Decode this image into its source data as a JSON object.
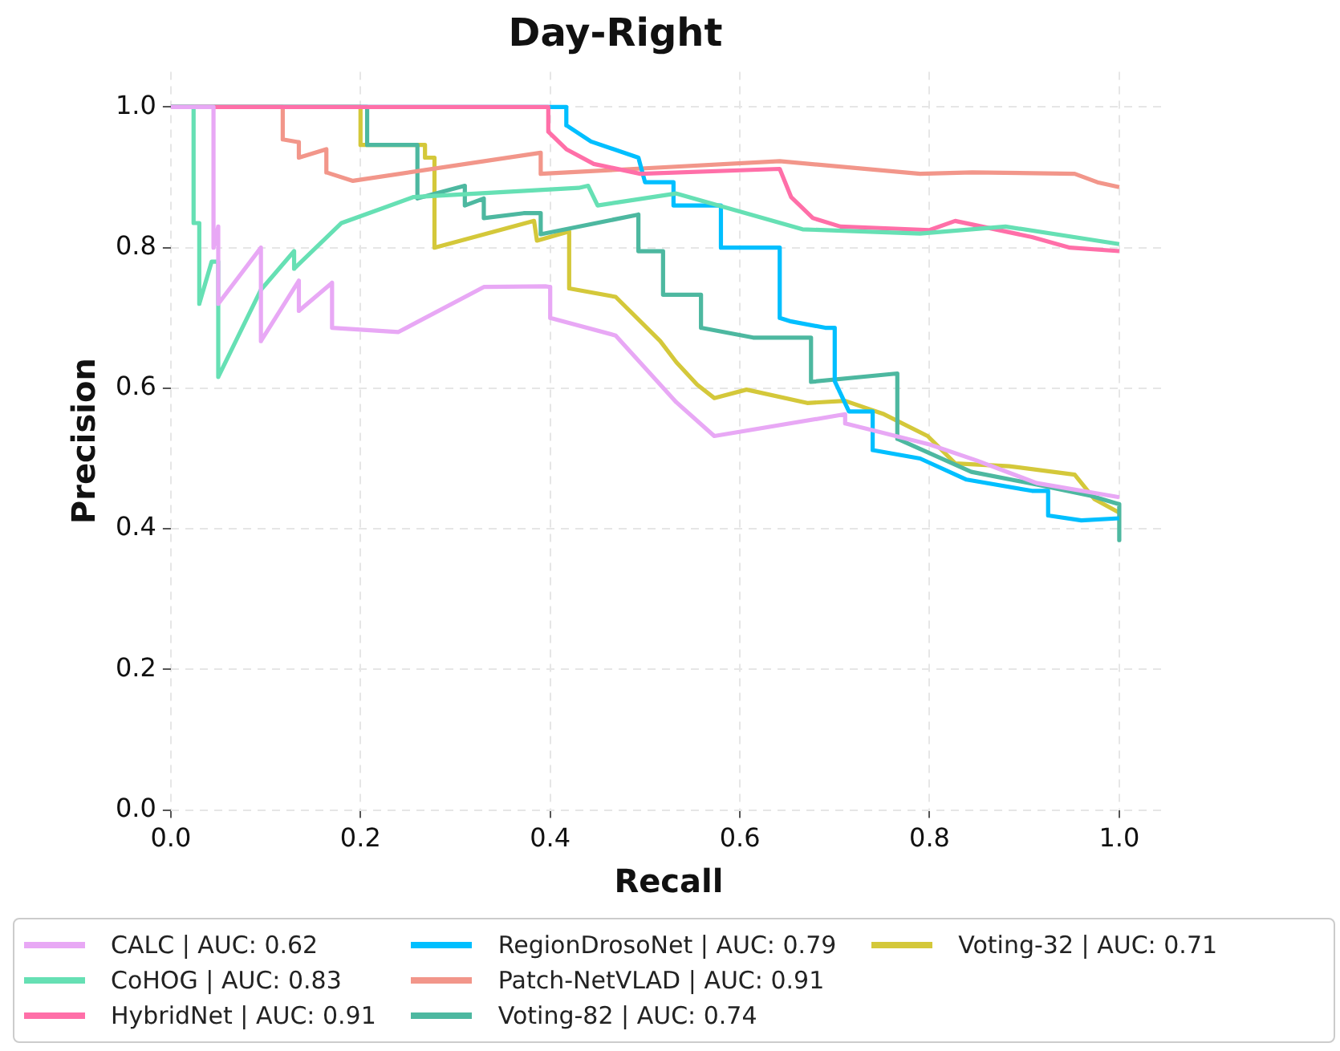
{
  "chart_data": {
    "type": "line",
    "title": "Day-Right",
    "xlabel": "Recall",
    "ylabel": "Precision",
    "xlim": [
      0,
      1.05
    ],
    "ylim": [
      0,
      1.05
    ],
    "xticks": [
      {
        "value": 0,
        "label": "0.0"
      },
      {
        "value": 0.2,
        "label": "0.2"
      },
      {
        "value": 0.4,
        "label": "0.4"
      },
      {
        "value": 0.6,
        "label": "0.6"
      },
      {
        "value": 0.8,
        "label": "0.8"
      },
      {
        "value": 1,
        "label": "1.0"
      }
    ],
    "yticks": [
      {
        "value": 0,
        "label": "0.0"
      },
      {
        "value": 0.2,
        "label": "0.2"
      },
      {
        "value": 0.4,
        "label": "0.4"
      },
      {
        "value": 0.6,
        "label": "0.6"
      },
      {
        "value": 0.8,
        "label": "0.8"
      },
      {
        "value": 1,
        "label": "1.0"
      }
    ],
    "grid": true,
    "legend": "bottom",
    "marker": "none",
    "line_style": "solid",
    "series": [
      {
        "name": "CALC | AUC: 0.62",
        "color": "#e8a8f5",
        "x": [
          0.0,
          0.045,
          0.045,
          0.05,
          0.05,
          0.095,
          0.095,
          0.135,
          0.135,
          0.17,
          0.17,
          0.24,
          0.33,
          0.395,
          0.4,
          0.4,
          0.469,
          0.533,
          0.573,
          0.711,
          0.711,
          0.8,
          0.85,
          0.913,
          1.0
        ],
        "values": [
          1.0,
          1.0,
          0.8,
          0.83,
          0.72,
          0.8,
          0.667,
          0.753,
          0.71,
          0.75,
          0.686,
          0.68,
          0.744,
          0.745,
          0.744,
          0.7,
          0.675,
          0.58,
          0.532,
          0.563,
          0.55,
          0.52,
          0.497,
          0.465,
          0.445
        ]
      },
      {
        "name": "CoHOG | AUC: 0.83",
        "color": "#66e0b4",
        "x": [
          0.0,
          0.024,
          0.024,
          0.03,
          0.03,
          0.043,
          0.05,
          0.05,
          0.095,
          0.13,
          0.13,
          0.18,
          0.256,
          0.43,
          0.44,
          0.45,
          0.533,
          0.666,
          0.79,
          0.88,
          1.0
        ],
        "values": [
          1.0,
          1.0,
          0.835,
          0.835,
          0.72,
          0.78,
          0.78,
          0.616,
          0.74,
          0.795,
          0.77,
          0.835,
          0.872,
          0.885,
          0.888,
          0.86,
          0.877,
          0.826,
          0.82,
          0.83,
          0.805
        ]
      },
      {
        "name": "HybridNet | AUC: 0.91",
        "color": "#ff6fa8",
        "x": [
          0.0,
          0.398,
          0.398,
          0.417,
          0.446,
          0.495,
          0.642,
          0.654,
          0.677,
          0.706,
          0.8,
          0.827,
          0.908,
          0.948,
          1.0
        ],
        "values": [
          1.0,
          1.0,
          0.965,
          0.94,
          0.919,
          0.905,
          0.912,
          0.872,
          0.842,
          0.83,
          0.825,
          0.838,
          0.815,
          0.8,
          0.795
        ]
      },
      {
        "name": "RegionDrosoNet | AUC: 0.79",
        "color": "#00bfff",
        "x": [
          0.0,
          0.417,
          0.417,
          0.443,
          0.493,
          0.5,
          0.53,
          0.53,
          0.58,
          0.58,
          0.642,
          0.642,
          0.654,
          0.69,
          0.7,
          0.7,
          0.715,
          0.74,
          0.74,
          0.79,
          0.839,
          0.908,
          0.925,
          0.925,
          0.96,
          1.0
        ],
        "values": [
          1.0,
          1.0,
          0.974,
          0.951,
          0.928,
          0.893,
          0.893,
          0.86,
          0.86,
          0.8,
          0.8,
          0.7,
          0.695,
          0.686,
          0.686,
          0.61,
          0.567,
          0.567,
          0.512,
          0.5,
          0.47,
          0.454,
          0.454,
          0.419,
          0.412,
          0.415
        ]
      },
      {
        "name": "Patch-NetVLAD | AUC: 0.91",
        "color": "#f2968a",
        "x": [
          0.0,
          0.118,
          0.118,
          0.135,
          0.135,
          0.164,
          0.164,
          0.192,
          0.39,
          0.39,
          0.642,
          0.79,
          0.845,
          0.953,
          0.977,
          1.0
        ],
        "values": [
          1.0,
          1.0,
          0.954,
          0.95,
          0.928,
          0.94,
          0.907,
          0.895,
          0.935,
          0.905,
          0.923,
          0.905,
          0.907,
          0.905,
          0.893,
          0.886
        ]
      },
      {
        "name": "Voting-82 | AUC: 0.74",
        "color": "#4db8a0",
        "x": [
          0.0,
          0.207,
          0.207,
          0.26,
          0.26,
          0.31,
          0.31,
          0.33,
          0.33,
          0.372,
          0.39,
          0.39,
          0.493,
          0.493,
          0.519,
          0.519,
          0.559,
          0.559,
          0.614,
          0.675,
          0.675,
          0.766,
          0.766,
          0.844,
          0.913,
          0.97,
          1.0,
          1.0
        ],
        "values": [
          1.0,
          1.0,
          0.946,
          0.946,
          0.87,
          0.888,
          0.86,
          0.87,
          0.842,
          0.849,
          0.849,
          0.819,
          0.847,
          0.795,
          0.795,
          0.733,
          0.733,
          0.686,
          0.672,
          0.672,
          0.609,
          0.621,
          0.528,
          0.481,
          0.463,
          0.447,
          0.435,
          0.384
        ]
      },
      {
        "name": "Voting-32 | AUC: 0.71",
        "color": "#d4c83a",
        "x": [
          0.0,
          0.2,
          0.2,
          0.268,
          0.268,
          0.278,
          0.278,
          0.383,
          0.386,
          0.42,
          0.42,
          0.469,
          0.516,
          0.533,
          0.555,
          0.573,
          0.607,
          0.671,
          0.711,
          0.752,
          0.798,
          0.827,
          0.884,
          0.953,
          0.974,
          1.0
        ],
        "values": [
          1.0,
          1.0,
          0.946,
          0.946,
          0.928,
          0.928,
          0.8,
          0.838,
          0.81,
          0.823,
          0.742,
          0.73,
          0.667,
          0.637,
          0.605,
          0.586,
          0.598,
          0.579,
          0.582,
          0.563,
          0.532,
          0.493,
          0.489,
          0.477,
          0.442,
          0.423
        ]
      }
    ]
  }
}
